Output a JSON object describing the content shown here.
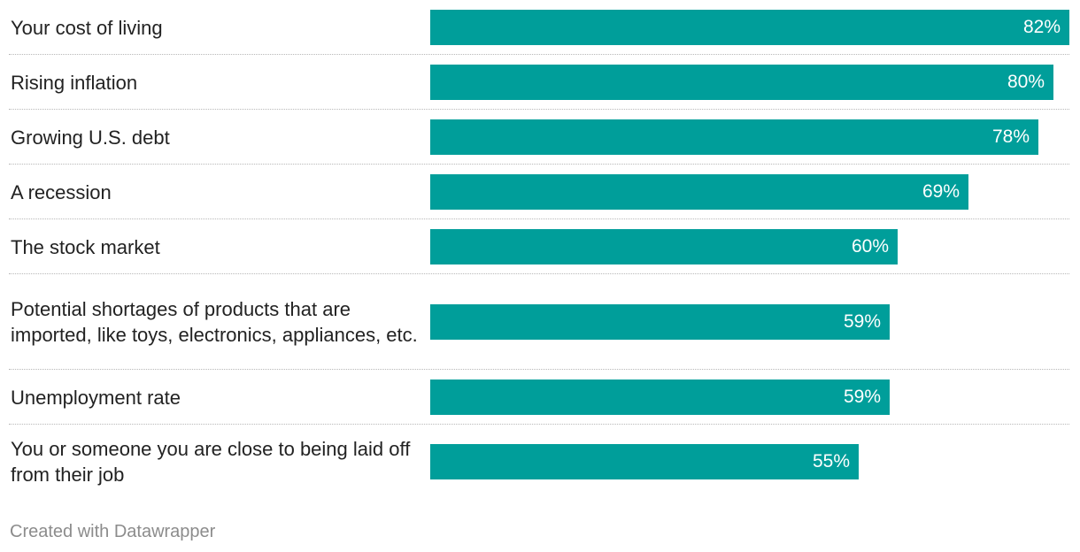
{
  "chart_data": {
    "type": "bar",
    "orientation": "horizontal",
    "categories": [
      "Your cost of living",
      "Rising inflation",
      "Growing U.S. debt",
      "A recession",
      "The stock market",
      "Potential shortages of products that are imported, like toys, electronics, appliances, etc.",
      "Unemployment rate",
      "You or someone you are close to being laid off from their job"
    ],
    "values": [
      82,
      80,
      78,
      69,
      60,
      59,
      59,
      55
    ],
    "value_labels": [
      "82%",
      "80%",
      "78%",
      "69%",
      "60%",
      "59%",
      "59%",
      "55%"
    ],
    "xlim": [
      0,
      82
    ],
    "bar_color": "#009e9a",
    "grid": false,
    "legend": "none"
  },
  "footer": {
    "credit": "Created with Datawrapper"
  }
}
